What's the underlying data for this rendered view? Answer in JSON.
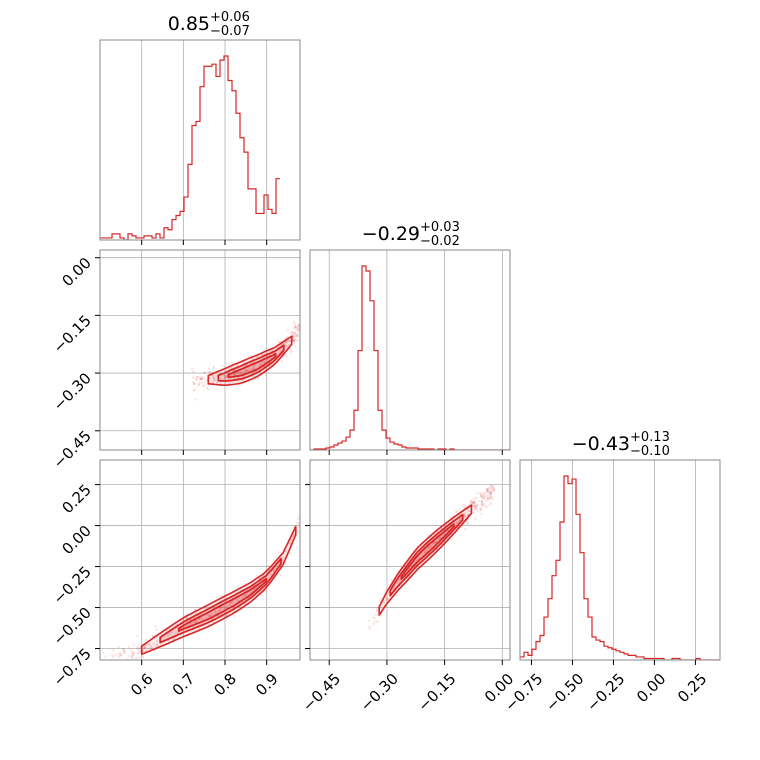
{
  "chart_data": {
    "type": "corner",
    "color": "#d62728",
    "parameters": [
      {
        "median": "0.85",
        "plus": "+0.06",
        "minus": "−0.07",
        "range": [
          0.5,
          0.98
        ],
        "ticks": [
          "0.6",
          "0.7",
          "0.8",
          "0.9"
        ],
        "tick_values": [
          0.6,
          0.7,
          0.8,
          0.9
        ]
      },
      {
        "median": "−0.29",
        "plus": "+0.03",
        "minus": "−0.02",
        "range": [
          -0.5,
          0.02
        ],
        "ticks": [
          "−0.45",
          "−0.30",
          "−0.15",
          "0.00"
        ],
        "tick_values": [
          -0.45,
          -0.3,
          -0.15,
          0.0
        ]
      },
      {
        "median": "−0.43",
        "plus": "+0.13",
        "minus": "−0.10",
        "range": [
          -0.82,
          0.4
        ],
        "ticks": [
          "−0.75",
          "−0.50",
          "−0.25",
          "0.00",
          "0.25"
        ],
        "tick_values": [
          -0.75,
          -0.5,
          -0.25,
          0.0,
          0.25
        ]
      }
    ],
    "histograms": [
      {
        "bin_start": 0.5,
        "bin_width": 0.0096,
        "counts": [
          1,
          1,
          1,
          3,
          3,
          1,
          0,
          3,
          2,
          1,
          1,
          2,
          2,
          1,
          3,
          1,
          6,
          5,
          10,
          12,
          14,
          21,
          37,
          56,
          58,
          75,
          85,
          85,
          86,
          80,
          88,
          90,
          78,
          73,
          62,
          50,
          43,
          25,
          25,
          13,
          13,
          22,
          15,
          13,
          30
        ]
      },
      {
        "bin_start": -0.5,
        "bin_width": 0.0104,
        "counts": [
          0,
          1,
          1,
          1,
          2,
          3,
          5,
          7,
          9,
          13,
          20,
          40,
          100,
          185,
          180,
          150,
          100,
          40,
          20,
          12,
          8,
          6,
          5,
          3,
          2,
          2,
          2,
          1,
          1,
          1,
          1,
          0,
          1,
          1,
          0,
          1,
          0,
          0,
          0,
          0,
          0,
          0,
          0,
          0,
          0,
          0,
          0,
          0,
          0,
          0
        ]
      },
      {
        "bin_start": -0.82,
        "bin_width": 0.0244,
        "counts": [
          2,
          5,
          3,
          7,
          12,
          16,
          28,
          40,
          55,
          65,
          90,
          120,
          115,
          118,
          95,
          70,
          40,
          28,
          15,
          13,
          12,
          9,
          8,
          7,
          6,
          5,
          4,
          3,
          3,
          2,
          2,
          1,
          1,
          1,
          1,
          1,
          0,
          0,
          1,
          1,
          0,
          0,
          0,
          0,
          1,
          0,
          0,
          0,
          0,
          0
        ]
      }
    ],
    "pairs": [
      {
        "x_param": 0,
        "y_param": 1,
        "mode": "p01",
        "ridge": [
          [
            0.72,
            -0.325
          ],
          [
            0.76,
            -0.317
          ],
          [
            0.8,
            -0.31
          ],
          [
            0.84,
            -0.298
          ],
          [
            0.88,
            -0.28
          ],
          [
            0.92,
            -0.255
          ],
          [
            0.96,
            -0.215
          ],
          [
            0.98,
            -0.175
          ]
        ]
      },
      {
        "x_param": 0,
        "y_param": 2,
        "mode": "p02",
        "ridge": [
          [
            0.5,
            -0.82
          ],
          [
            0.6,
            -0.76
          ],
          [
            0.7,
            -0.62
          ],
          [
            0.76,
            -0.55
          ],
          [
            0.82,
            -0.47
          ],
          [
            0.86,
            -0.41
          ],
          [
            0.9,
            -0.33
          ],
          [
            0.94,
            -0.2
          ],
          [
            0.97,
            -0.03
          ],
          [
            0.98,
            0.03
          ]
        ]
      },
      {
        "x_param": 1,
        "y_param": 2,
        "mode": "p12",
        "ridge": [
          [
            -0.35,
            -0.62
          ],
          [
            -0.32,
            -0.52
          ],
          [
            -0.3,
            -0.44
          ],
          [
            -0.27,
            -0.34
          ],
          [
            -0.22,
            -0.2
          ],
          [
            -0.15,
            -0.05
          ],
          [
            -0.08,
            0.1
          ],
          [
            -0.02,
            0.22
          ]
        ]
      }
    ]
  }
}
